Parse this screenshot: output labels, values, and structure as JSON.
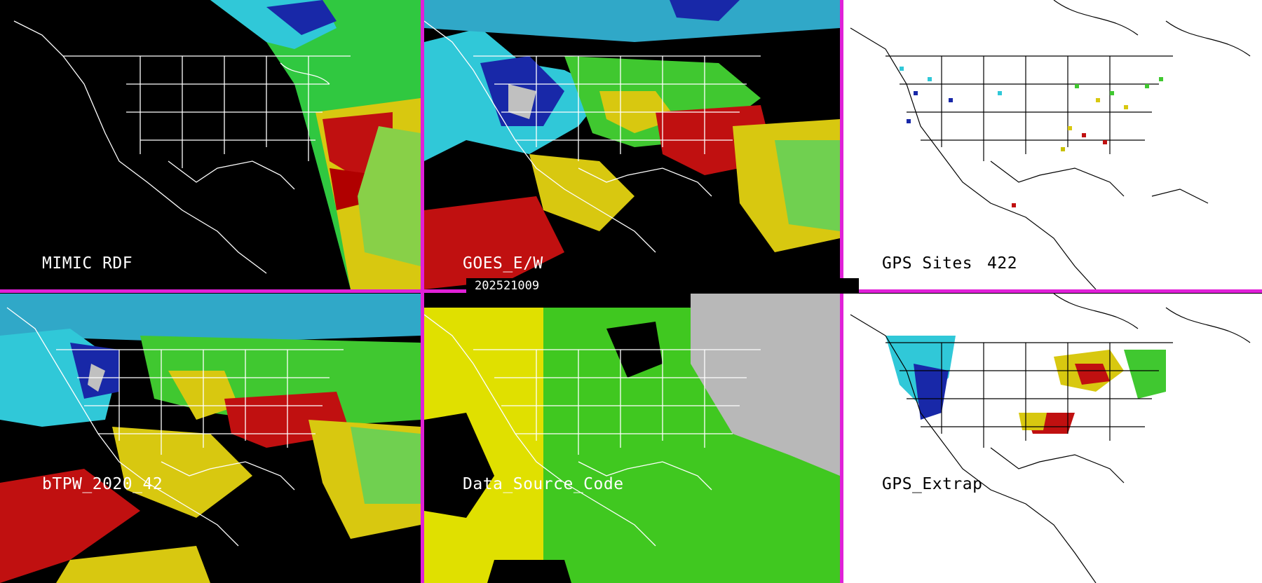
{
  "colors": {
    "separator": "#e020d8",
    "tpw_scale": [
      "#000000",
      "#1010a0",
      "#2040d0",
      "#30d0e0",
      "#70e8f0",
      "#20c020",
      "#60e060",
      "#e8e020",
      "#c8c000",
      "#d01010",
      "#a00000",
      "#c0c0c0"
    ]
  },
  "panels": [
    {
      "id": "mimic-rdf",
      "label": "MIMIC RDF",
      "theme": "dark"
    },
    {
      "id": "goes-ew",
      "label": "GOES_E/W",
      "theme": "dark"
    },
    {
      "id": "gps-sites",
      "label": "GPS Sites",
      "count": "422",
      "theme": "light"
    },
    {
      "id": "btpw",
      "label": "bTPW_2020_42",
      "theme": "dark"
    },
    {
      "id": "data-source",
      "label": "Data_Source_Code",
      "theme": "dark"
    },
    {
      "id": "gps-extrap",
      "label": "GPS_Extrap",
      "theme": "light"
    }
  ],
  "timestamp": "202521009"
}
